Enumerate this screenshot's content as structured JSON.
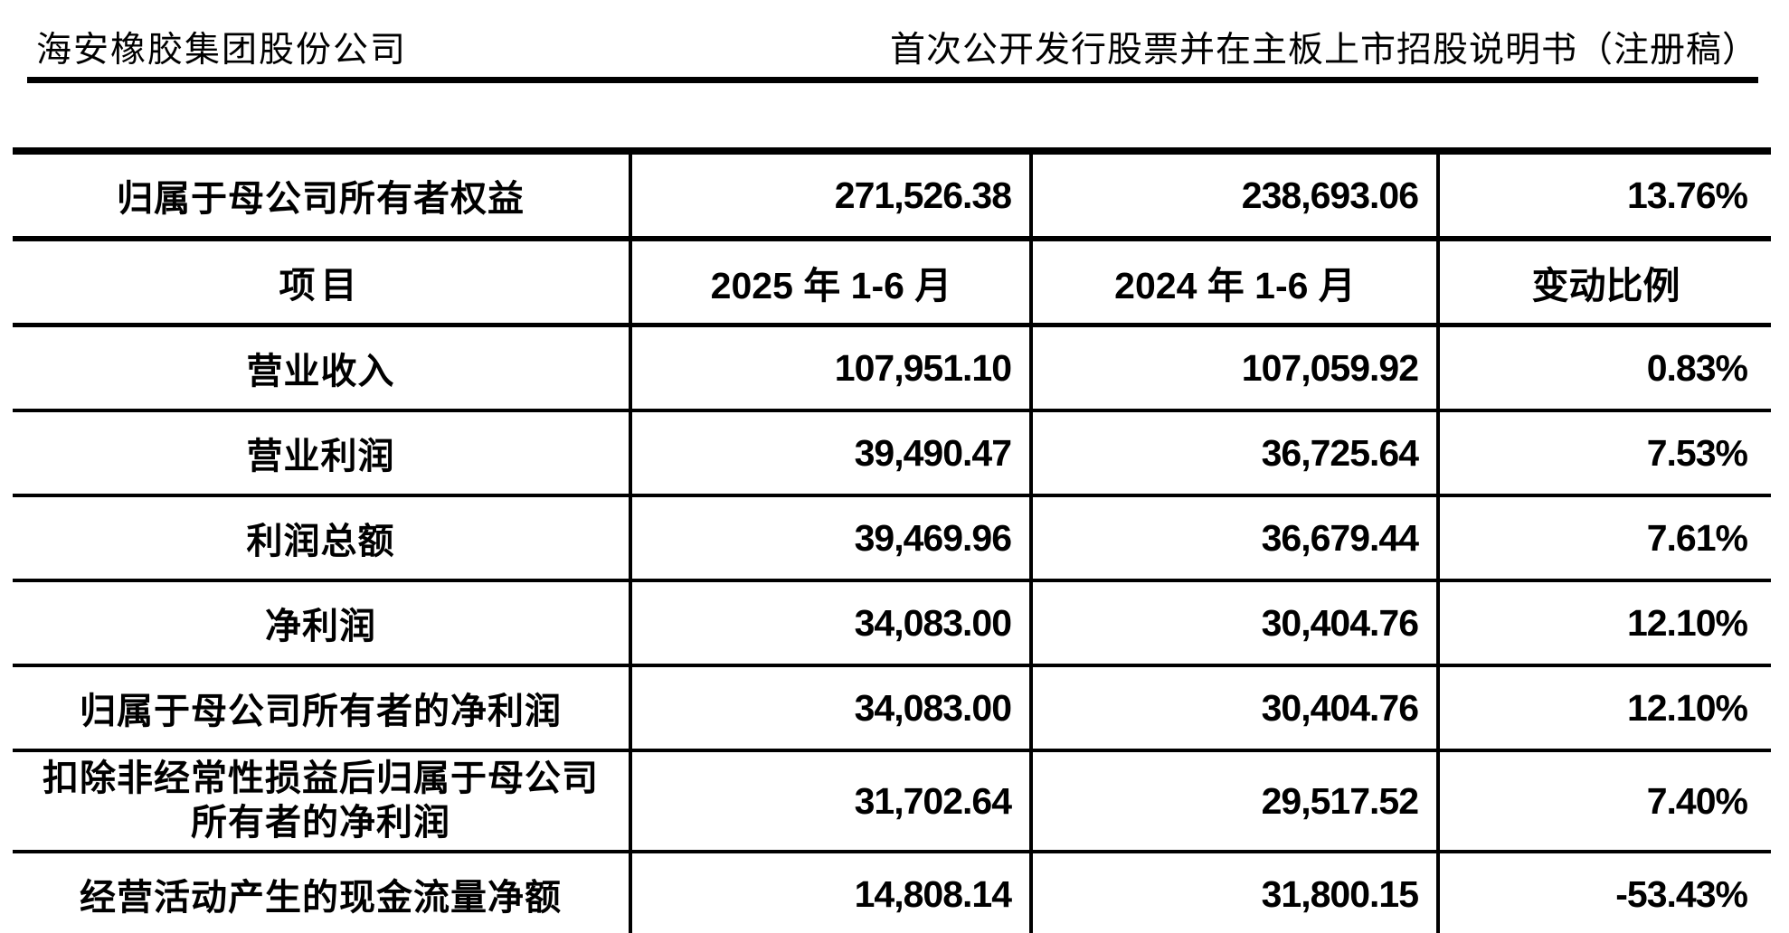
{
  "page_header": {
    "company": "海安橡胶集团股份公司",
    "document_title": "首次公开发行股票并在主板上市招股说明书（注册稿）"
  },
  "colors": {
    "text": "#000000",
    "background": "#ffffff",
    "table_border": "#000000"
  },
  "table": {
    "rows": [
      {
        "item": "归属于母公司所有者权益",
        "current": "271,526.38",
        "prior": "238,693.06",
        "change": "13.76%"
      },
      {
        "item": "项目",
        "current": "2025 年 1-6 月",
        "prior": "2024 年 1-6 月",
        "change": "变动比例"
      },
      {
        "item": "营业收入",
        "current": "107,951.10",
        "prior": "107,059.92",
        "change": "0.83%"
      },
      {
        "item": "营业利润",
        "current": "39,490.47",
        "prior": "36,725.64",
        "change": "7.53%"
      },
      {
        "item": "利润总额",
        "current": "39,469.96",
        "prior": "36,679.44",
        "change": "7.61%"
      },
      {
        "item": "净利润",
        "current": "34,083.00",
        "prior": "30,404.76",
        "change": "12.10%"
      },
      {
        "item": "归属于母公司所有者的净利润",
        "current": "34,083.00",
        "prior": "30,404.76",
        "change": "12.10%"
      },
      {
        "item": "扣除非经常性损益后归属于母公司所有者的净利润",
        "item_line1": "扣除非经常性损益后归属于母公司",
        "item_line2": "所有者的净利润",
        "current": "31,702.64",
        "prior": "29,517.52",
        "change": "7.40%"
      },
      {
        "item": "经营活动产生的现金流量净额",
        "current": "14,808.14",
        "prior": "31,800.15",
        "change": "-53.43%"
      }
    ]
  }
}
